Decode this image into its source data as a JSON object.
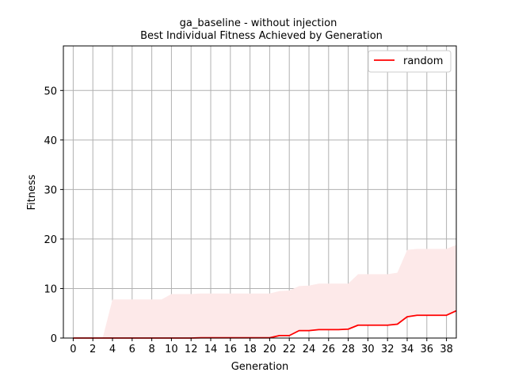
{
  "chart_data": {
    "type": "line",
    "title": "ga_baseline - without injection",
    "subtitle": "Best Individual Fitness Achieved by Generation",
    "xlabel": "Generation",
    "ylabel": "Fitness",
    "xlim": [
      -1,
      39
    ],
    "ylim": [
      0,
      59
    ],
    "xticks": [
      0,
      2,
      4,
      6,
      8,
      10,
      12,
      14,
      16,
      18,
      20,
      22,
      24,
      26,
      28,
      30,
      32,
      34,
      36,
      38
    ],
    "yticks": [
      0,
      10,
      20,
      30,
      40,
      50
    ],
    "grid": true,
    "legend_position": "top-right",
    "series": [
      {
        "name": "random",
        "color": "#ff0000",
        "band_color": "#fde9e9",
        "x": [
          0,
          1,
          2,
          3,
          4,
          5,
          6,
          7,
          8,
          9,
          10,
          11,
          12,
          13,
          14,
          15,
          16,
          17,
          18,
          19,
          20,
          21,
          22,
          23,
          24,
          25,
          26,
          27,
          28,
          29,
          30,
          31,
          32,
          33,
          34,
          35,
          36,
          37,
          38,
          39
        ],
        "values": [
          0,
          0,
          0,
          0,
          0,
          0,
          0,
          0,
          0,
          0,
          0,
          0,
          0,
          0.05,
          0.05,
          0.05,
          0.05,
          0.05,
          0.05,
          0.05,
          0.05,
          0.5,
          0.5,
          1.5,
          1.5,
          1.7,
          1.7,
          1.7,
          1.8,
          2.6,
          2.6,
          2.6,
          2.6,
          2.8,
          4.3,
          4.6,
          4.6,
          4.6,
          4.6,
          5.5
        ],
        "upper": [
          0,
          0,
          0,
          0,
          7.8,
          7.8,
          7.8,
          7.8,
          7.8,
          7.8,
          8.9,
          8.9,
          8.9,
          9.0,
          9.0,
          9.0,
          9.0,
          9.0,
          9.0,
          9.0,
          9.0,
          9.5,
          9.6,
          10.5,
          10.6,
          11.0,
          11.0,
          11.0,
          11.0,
          12.9,
          12.9,
          12.9,
          12.9,
          13.2,
          17.8,
          18.0,
          18.0,
          18.0,
          18.0,
          18.8
        ]
      }
    ]
  }
}
